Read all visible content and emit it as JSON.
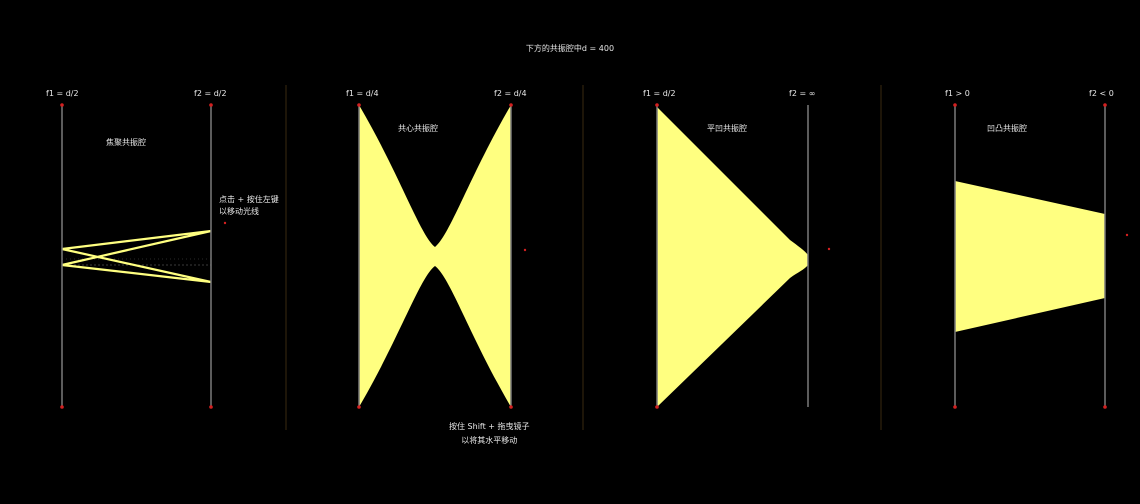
{
  "header": {
    "title": "下方的共振腔中d = 400"
  },
  "panels": [
    {
      "left_label": "f1 = d/2",
      "right_label": "f2 = d/2",
      "cavity_label": "焦聚共振腔"
    },
    {
      "left_label": "f1 = d/4",
      "right_label": "f2 = d/4",
      "cavity_label": "共心共振腔"
    },
    {
      "left_label": "f1 = d/2",
      "right_label": "f2 = ∞",
      "cavity_label": "平凹共振腔"
    },
    {
      "left_label": "f1 > 0",
      "right_label": "f2 < 0",
      "cavity_label": "凹凸共振腔"
    }
  ],
  "hints": {
    "click_drag_line1": "点击 + 按住左键",
    "click_drag_line2": "以移动光线",
    "shift_drag_line1": "按住 Shift + 拖曳镜子",
    "shift_drag_line2": "以将其水平移动"
  },
  "colors": {
    "background": "#000000",
    "beam": "#ffff80",
    "mirror": "#7a7a7a",
    "mirror_end": "#d42020",
    "divider": "#3a2a10",
    "text": "#e8e8e8"
  }
}
